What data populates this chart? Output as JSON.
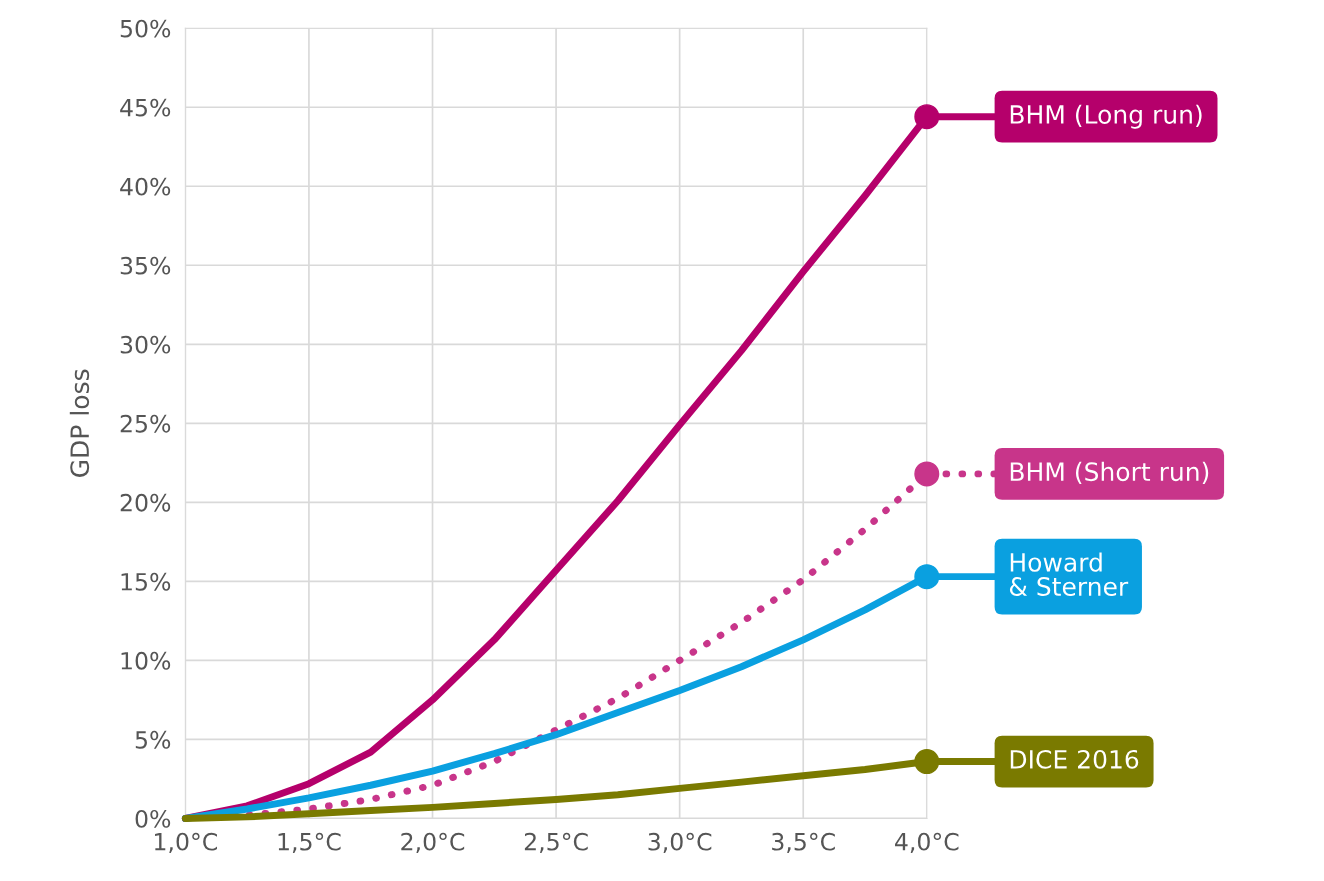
{
  "chart_data": {
    "type": "line",
    "ylabel": "GDP loss",
    "x": [
      1.0,
      1.25,
      1.5,
      1.75,
      2.0,
      2.25,
      2.5,
      2.75,
      3.0,
      3.25,
      3.5,
      3.75,
      4.0
    ],
    "series": [
      {
        "name": "BHM (Long run)",
        "color": "#b5006b",
        "line_style": "solid",
        "values": [
          0,
          0.8,
          2.2,
          4.2,
          7.5,
          11.3,
          15.7,
          20.1,
          24.9,
          29.6,
          34.6,
          39.4,
          44.4
        ]
      },
      {
        "name": "BHM (Short run)",
        "color": "#c8358a",
        "line_style": "dotted",
        "values": [
          0,
          0.2,
          0.6,
          1.2,
          2.1,
          3.6,
          5.6,
          7.6,
          10.0,
          12.4,
          15.1,
          18.3,
          21.8
        ]
      },
      {
        "name": "Howard\n& Sterner",
        "color": "#0aa0e0",
        "line_style": "solid",
        "values": [
          0,
          0.6,
          1.3,
          2.1,
          3.0,
          4.1,
          5.3,
          6.7,
          8.1,
          9.6,
          11.3,
          13.2,
          15.3
        ]
      },
      {
        "name": "DICE 2016",
        "color": "#7a7a00",
        "line_style": "solid",
        "values": [
          0,
          0.1,
          0.3,
          0.5,
          0.7,
          0.95,
          1.2,
          1.5,
          1.9,
          2.3,
          2.7,
          3.1,
          3.6
        ]
      }
    ],
    "xlim": [
      1.0,
      4.0
    ],
    "xticks": [
      {
        "value": 1.0,
        "label": "1,0°C"
      },
      {
        "value": 1.5,
        "label": "1,5°C"
      },
      {
        "value": 2.0,
        "label": "2,0°C"
      },
      {
        "value": 2.5,
        "label": "2,5°C"
      },
      {
        "value": 3.0,
        "label": "3,0°C"
      },
      {
        "value": 3.5,
        "label": "3,5°C"
      },
      {
        "value": 4.0,
        "label": "4,0°C"
      }
    ],
    "ylim": [
      0,
      50
    ],
    "yticks": [
      {
        "value": 0,
        "label": "0%"
      },
      {
        "value": 5,
        "label": "5%"
      },
      {
        "value": 10,
        "label": "10%"
      },
      {
        "value": 15,
        "label": "15%"
      },
      {
        "value": 20,
        "label": "20%"
      },
      {
        "value": 25,
        "label": "25%"
      },
      {
        "value": 30,
        "label": "30%"
      },
      {
        "value": 35,
        "label": "35%"
      },
      {
        "value": 40,
        "label": "40%"
      },
      {
        "value": 45,
        "label": "45%"
      },
      {
        "value": 50,
        "label": "50%"
      }
    ],
    "grid": true,
    "legend": "right"
  }
}
